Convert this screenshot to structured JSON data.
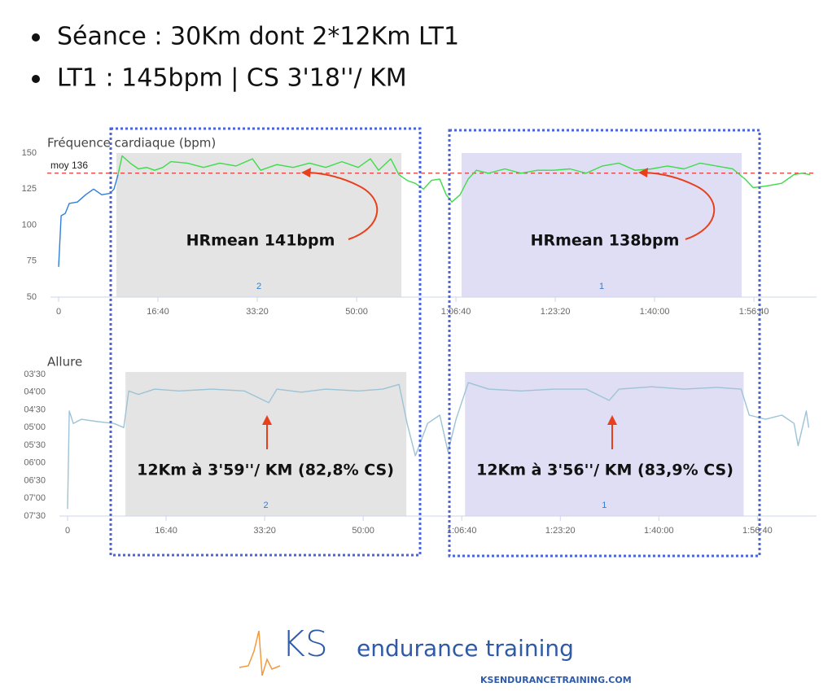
{
  "bullets": [
    "Séance : 30Km dont 2*12Km LT1",
    "LT1 : 145bpm | CS 3'18''/ KM"
  ],
  "chart_data": [
    {
      "type": "line",
      "axis_title": "Fréquence cardiaque (bpm)",
      "xlim": [
        0,
        7630
      ],
      "xticks": [
        0,
        {
          "value": 1000,
          "label": "16:40"
        },
        {
          "value": 2000,
          "label": "33:20"
        },
        {
          "value": 3000,
          "label": "50:00"
        },
        {
          "value": 4000,
          "label": "1:06:40"
        },
        {
          "value": 5000,
          "label": "1:23:20"
        },
        {
          "value": 6000,
          "label": "1:40:00"
        },
        {
          "value": 7000,
          "label": "1:56:40"
        }
      ],
      "ylim": [
        50,
        150
      ],
      "yticks": [
        50,
        75,
        100,
        125,
        150
      ],
      "bands": [
        {
          "start": 582,
          "end": 3451,
          "label": "2",
          "color": "#e4e4e4"
        },
        {
          "start": 4057,
          "end": 6877,
          "label": "1",
          "color": "#e0def5"
        }
      ],
      "mean_line": {
        "value": 136,
        "label": "moy 136",
        "color": "#e53935"
      },
      "series": [
        {
          "color": "#2f7ed8",
          "x": [
            0,
            25,
            66,
            107,
            189,
            271,
            352,
            434,
            516,
            557,
            598
          ],
          "values": [
            71,
            106.5,
            108,
            115,
            116,
            121,
            125,
            121,
            122,
            125,
            135
          ]
        },
        {
          "color": "#3ddc4a",
          "x": [
            598,
            639,
            721,
            803,
            885,
            967,
            1049,
            1131,
            1295,
            1459,
            1623,
            1787,
            1951,
            2033,
            2197,
            2361,
            2525,
            2689,
            2852,
            3016,
            3139,
            3221,
            3344,
            3426,
            3508,
            3590,
            3672,
            3754,
            3836,
            3902,
            3959,
            4041,
            4123,
            4205,
            4328,
            4492,
            4656,
            4820,
            4984,
            5148,
            5311,
            5475,
            5639,
            5803,
            5967,
            6131,
            6295,
            6459,
            6623,
            6787,
            6910,
            6992,
            7115,
            7279,
            7402,
            7484,
            7566
          ],
          "values": [
            135,
            148,
            143,
            139,
            140,
            138,
            140,
            144,
            143,
            140,
            143,
            141,
            146,
            138,
            142,
            140,
            143,
            140,
            144,
            140,
            146,
            138,
            146,
            135,
            131,
            129,
            125,
            131,
            132,
            121,
            116,
            121,
            132,
            138,
            136,
            139,
            136,
            138,
            138,
            139,
            136,
            141,
            143,
            138,
            139,
            141,
            139,
            143,
            141,
            139,
            132,
            126,
            127,
            129,
            135,
            136,
            135
          ]
        }
      ],
      "annotations": [
        "HRmean 141bpm",
        "HRmean 138bpm"
      ]
    },
    {
      "type": "line",
      "axis_title": "Allure",
      "xlim": [
        0,
        7600
      ],
      "xticks": [
        0,
        {
          "value": 1000,
          "label": "16:40"
        },
        {
          "value": 2000,
          "label": "33:20"
        },
        {
          "value": 3000,
          "label": "50:00"
        },
        {
          "value": 4000,
          "label": "1:06:40"
        },
        {
          "value": 5000,
          "label": "1:23:20"
        },
        {
          "value": 6000,
          "label": "1:40:00"
        },
        {
          "value": 7000,
          "label": "1:56:40"
        }
      ],
      "ylim": [
        210,
        450
      ],
      "y_inverted": true,
      "yticks": [
        {
          "value": 210,
          "label": "03'30"
        },
        {
          "value": 240,
          "label": "04'00"
        },
        {
          "value": 270,
          "label": "04'30"
        },
        {
          "value": 300,
          "label": "05'00"
        },
        {
          "value": 330,
          "label": "05'30"
        },
        {
          "value": 360,
          "label": "06'00"
        },
        {
          "value": 390,
          "label": "06'30"
        },
        {
          "value": 420,
          "label": "07'00"
        },
        {
          "value": 450,
          "label": "07'30"
        }
      ],
      "bands": [
        {
          "start": 587,
          "end": 3438,
          "label": "2",
          "color": "#e4e4e4"
        },
        {
          "start": 4033,
          "end": 6860,
          "label": "1",
          "color": "#e0def5"
        }
      ],
      "series": [
        {
          "color": "#9cc3d6",
          "x": [
            0,
            17,
            58,
            140,
            306,
            471,
            570,
            620,
            719,
            884,
            1132,
            1463,
            1793,
            2041,
            2124,
            2372,
            2620,
            2950,
            3198,
            3364,
            3446,
            3529,
            3653,
            3777,
            3860,
            3942,
            4066,
            4273,
            4603,
            4934,
            5264,
            5496,
            5595,
            5926,
            6256,
            6587,
            6835,
            6917,
            7083,
            7248,
            7372,
            7413,
            7496,
            7521
          ],
          "values": [
            438,
            272,
            293,
            286,
            290,
            293,
            300,
            238,
            244,
            235,
            238,
            235,
            238,
            258,
            235,
            240,
            235,
            238,
            235,
            227,
            293,
            348,
            293,
            279,
            341,
            286,
            224,
            235,
            238,
            235,
            235,
            254,
            235,
            231,
            235,
            232,
            235,
            279,
            286,
            279,
            293,
            331,
            272,
            300
          ]
        }
      ],
      "annotations": [
        "12Km à 3'59''/ KM (82,8% CS)",
        "12Km à 3'56''/ KM (83,9% CS)"
      ]
    }
  ],
  "logo": {
    "mark": "KS",
    "name": "endurance training",
    "url": "KSENDURANCETRAINING.COM"
  }
}
